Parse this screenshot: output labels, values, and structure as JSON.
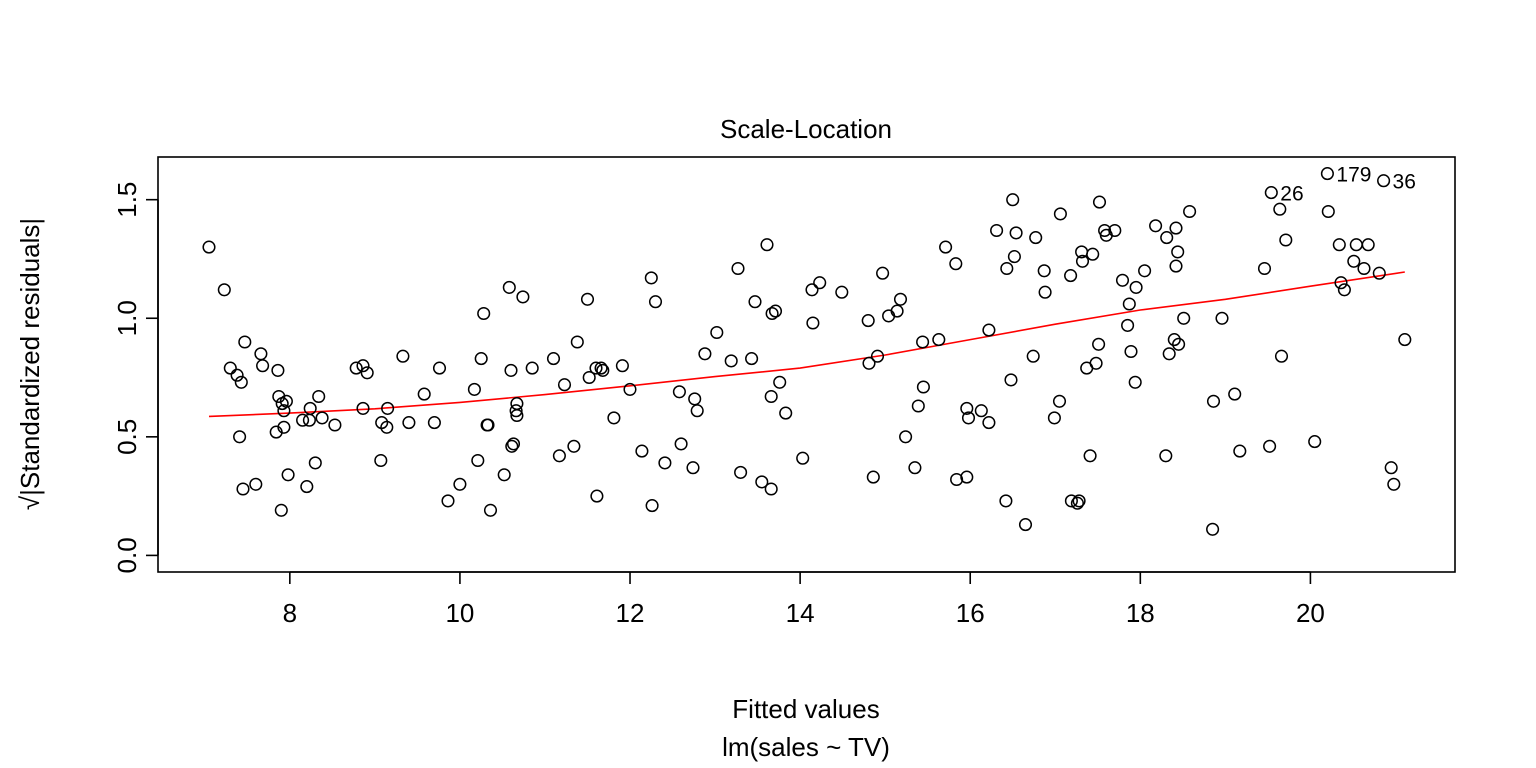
{
  "chart_data": {
    "type": "scatter",
    "title": "Scale-Location",
    "xlabel": "Fitted values",
    "xsublabel": "lm(sales ~ TV)",
    "ylabel_prefix": "√",
    "ylabel": "|Standardized residuals|",
    "xlim": [
      6.45,
      21.7
    ],
    "ylim": [
      -0.07,
      1.68
    ],
    "x_ticks": [
      "8",
      "10",
      "12",
      "14",
      "16",
      "18",
      "20"
    ],
    "y_ticks": [
      "0.0",
      "0.5",
      "1.0",
      "1.5"
    ],
    "colors": {
      "points": "#000000",
      "smoother": "#ff0000"
    },
    "points": [
      [
        7.05,
        1.3
      ],
      [
        7.23,
        1.12
      ],
      [
        7.3,
        0.79
      ],
      [
        7.38,
        0.76
      ],
      [
        7.41,
        0.5
      ],
      [
        7.43,
        0.73
      ],
      [
        7.45,
        0.28
      ],
      [
        7.47,
        0.9
      ],
      [
        7.6,
        0.3
      ],
      [
        7.66,
        0.85
      ],
      [
        7.68,
        0.8
      ],
      [
        7.84,
        0.52
      ],
      [
        7.86,
        0.78
      ],
      [
        7.87,
        0.67
      ],
      [
        7.9,
        0.19
      ],
      [
        7.91,
        0.64
      ],
      [
        7.93,
        0.54
      ],
      [
        7.93,
        0.61
      ],
      [
        7.96,
        0.65
      ],
      [
        7.98,
        0.34
      ],
      [
        8.15,
        0.57
      ],
      [
        8.2,
        0.29
      ],
      [
        8.23,
        0.57
      ],
      [
        8.24,
        0.62
      ],
      [
        8.3,
        0.39
      ],
      [
        8.34,
        0.67
      ],
      [
        8.38,
        0.58
      ],
      [
        8.53,
        0.55
      ],
      [
        8.78,
        0.79
      ],
      [
        8.86,
        0.8
      ],
      [
        8.86,
        0.62
      ],
      [
        8.91,
        0.77
      ],
      [
        9.07,
        0.4
      ],
      [
        9.08,
        0.56
      ],
      [
        9.14,
        0.54
      ],
      [
        9.15,
        0.62
      ],
      [
        9.33,
        0.84
      ],
      [
        9.4,
        0.56
      ],
      [
        9.58,
        0.68
      ],
      [
        9.7,
        0.56
      ],
      [
        9.76,
        0.79
      ],
      [
        9.86,
        0.23
      ],
      [
        10.0,
        0.3
      ],
      [
        10.17,
        0.7
      ],
      [
        10.21,
        0.4
      ],
      [
        10.25,
        0.83
      ],
      [
        10.28,
        1.02
      ],
      [
        10.32,
        0.55
      ],
      [
        10.33,
        0.55
      ],
      [
        10.36,
        0.19
      ],
      [
        10.52,
        0.34
      ],
      [
        10.58,
        1.13
      ],
      [
        10.6,
        0.78
      ],
      [
        10.61,
        0.46
      ],
      [
        10.63,
        0.47
      ],
      [
        10.66,
        0.61
      ],
      [
        10.67,
        0.59
      ],
      [
        10.67,
        0.64
      ],
      [
        10.74,
        1.09
      ],
      [
        10.85,
        0.79
      ],
      [
        11.1,
        0.83
      ],
      [
        11.17,
        0.42
      ],
      [
        11.23,
        0.72
      ],
      [
        11.34,
        0.46
      ],
      [
        11.38,
        0.9
      ],
      [
        11.5,
        1.08
      ],
      [
        11.52,
        0.75
      ],
      [
        11.6,
        0.79
      ],
      [
        11.61,
        0.25
      ],
      [
        11.66,
        0.79
      ],
      [
        11.68,
        0.78
      ],
      [
        11.81,
        0.58
      ],
      [
        11.91,
        0.8
      ],
      [
        12.0,
        0.7
      ],
      [
        12.14,
        0.44
      ],
      [
        12.25,
        1.17
      ],
      [
        12.26,
        0.21
      ],
      [
        12.3,
        1.07
      ],
      [
        12.41,
        0.39
      ],
      [
        12.58,
        0.69
      ],
      [
        12.6,
        0.47
      ],
      [
        12.74,
        0.37
      ],
      [
        12.76,
        0.66
      ],
      [
        12.79,
        0.61
      ],
      [
        12.88,
        0.85
      ],
      [
        13.02,
        0.94
      ],
      [
        13.19,
        0.82
      ],
      [
        13.27,
        1.21
      ],
      [
        13.3,
        0.35
      ],
      [
        13.43,
        0.83
      ],
      [
        13.47,
        1.07
      ],
      [
        13.55,
        0.31
      ],
      [
        13.61,
        1.31
      ],
      [
        13.66,
        0.28
      ],
      [
        13.66,
        0.67
      ],
      [
        13.67,
        1.02
      ],
      [
        13.71,
        1.03
      ],
      [
        13.76,
        0.73
      ],
      [
        13.83,
        0.6
      ],
      [
        14.03,
        0.41
      ],
      [
        14.14,
        1.12
      ],
      [
        14.15,
        0.98
      ],
      [
        14.23,
        1.15
      ],
      [
        14.49,
        1.11
      ],
      [
        14.8,
        0.99
      ],
      [
        14.81,
        0.81
      ],
      [
        14.86,
        0.33
      ],
      [
        14.91,
        0.84
      ],
      [
        14.97,
        1.19
      ],
      [
        15.04,
        1.01
      ],
      [
        15.14,
        1.03
      ],
      [
        15.18,
        1.08
      ],
      [
        15.24,
        0.5
      ],
      [
        15.35,
        0.37
      ],
      [
        15.39,
        0.63
      ],
      [
        15.44,
        0.9
      ],
      [
        15.45,
        0.71
      ],
      [
        15.63,
        0.91
      ],
      [
        15.71,
        1.3
      ],
      [
        15.83,
        1.23
      ],
      [
        15.84,
        0.32
      ],
      [
        15.96,
        0.62
      ],
      [
        15.96,
        0.33
      ],
      [
        15.98,
        0.58
      ],
      [
        16.13,
        0.61
      ],
      [
        16.22,
        0.56
      ],
      [
        16.22,
        0.95
      ],
      [
        16.31,
        1.37
      ],
      [
        16.42,
        0.23
      ],
      [
        16.43,
        1.21
      ],
      [
        16.48,
        0.74
      ],
      [
        16.5,
        1.5
      ],
      [
        16.52,
        1.26
      ],
      [
        16.54,
        1.36
      ],
      [
        16.65,
        0.13
      ],
      [
        16.74,
        0.84
      ],
      [
        16.77,
        1.34
      ],
      [
        16.87,
        1.2
      ],
      [
        16.88,
        1.11
      ],
      [
        16.99,
        0.58
      ],
      [
        17.05,
        0.65
      ],
      [
        17.06,
        1.44
      ],
      [
        17.18,
        1.18
      ],
      [
        17.19,
        0.23
      ],
      [
        17.26,
        0.22
      ],
      [
        17.28,
        0.23
      ],
      [
        17.31,
        1.28
      ],
      [
        17.32,
        1.24
      ],
      [
        17.37,
        0.79
      ],
      [
        17.41,
        0.42
      ],
      [
        17.44,
        1.27
      ],
      [
        17.48,
        0.81
      ],
      [
        17.51,
        0.89
      ],
      [
        17.52,
        1.49
      ],
      [
        17.58,
        1.37
      ],
      [
        17.6,
        1.35
      ],
      [
        17.7,
        1.37
      ],
      [
        17.79,
        1.16
      ],
      [
        17.85,
        0.97
      ],
      [
        17.87,
        1.06
      ],
      [
        17.89,
        0.86
      ],
      [
        17.94,
        0.73
      ],
      [
        17.95,
        1.13
      ],
      [
        18.05,
        1.2
      ],
      [
        18.18,
        1.39
      ],
      [
        18.3,
        0.42
      ],
      [
        18.31,
        1.34
      ],
      [
        18.34,
        0.85
      ],
      [
        18.4,
        0.91
      ],
      [
        18.42,
        1.22
      ],
      [
        18.42,
        1.38
      ],
      [
        18.44,
        1.28
      ],
      [
        18.45,
        0.89
      ],
      [
        18.51,
        1.0
      ],
      [
        18.58,
        1.45
      ],
      [
        18.85,
        0.11
      ],
      [
        18.86,
        0.65
      ],
      [
        18.96,
        1.0
      ],
      [
        19.11,
        0.68
      ],
      [
        19.17,
        0.44
      ],
      [
        19.46,
        1.21
      ],
      [
        19.52,
        0.46
      ],
      [
        19.54,
        1.53
      ],
      [
        19.64,
        1.46
      ],
      [
        19.66,
        0.84
      ],
      [
        19.71,
        1.33
      ],
      [
        20.05,
        0.48
      ],
      [
        20.2,
        1.61
      ],
      [
        20.21,
        1.45
      ],
      [
        20.34,
        1.31
      ],
      [
        20.36,
        1.15
      ],
      [
        20.4,
        1.12
      ],
      [
        20.51,
        1.24
      ],
      [
        20.54,
        1.31
      ],
      [
        20.63,
        1.21
      ],
      [
        20.68,
        1.31
      ],
      [
        20.81,
        1.19
      ],
      [
        20.86,
        1.58
      ],
      [
        20.95,
        0.37
      ],
      [
        20.98,
        0.3
      ],
      [
        21.11,
        0.91
      ]
    ],
    "smoother": [
      [
        7.05,
        0.586
      ],
      [
        8.0,
        0.6
      ],
      [
        9.0,
        0.618
      ],
      [
        10.0,
        0.645
      ],
      [
        11.0,
        0.678
      ],
      [
        12.0,
        0.715
      ],
      [
        13.0,
        0.754
      ],
      [
        14.0,
        0.79
      ],
      [
        15.0,
        0.845
      ],
      [
        16.0,
        0.91
      ],
      [
        17.0,
        0.975
      ],
      [
        18.0,
        1.035
      ],
      [
        19.0,
        1.08
      ],
      [
        20.0,
        1.135
      ],
      [
        21.11,
        1.195
      ]
    ],
    "point_labels": [
      {
        "text": "179",
        "x": 20.2,
        "y": 1.61
      },
      {
        "text": "36",
        "x": 20.86,
        "y": 1.58
      },
      {
        "text": "26",
        "x": 19.54,
        "y": 1.53
      }
    ]
  }
}
